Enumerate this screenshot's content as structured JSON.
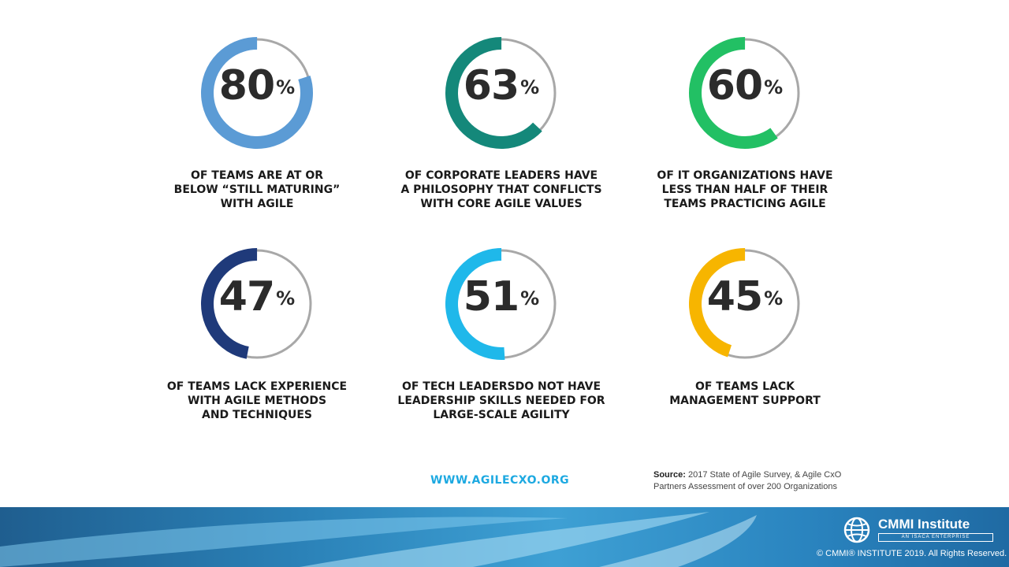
{
  "chart_data": {
    "type": "donut",
    "values": [
      80,
      63,
      60,
      47,
      51,
      45
    ],
    "unit": "%",
    "items": [
      {
        "value": 80,
        "color": "#5b9bd5",
        "caption": [
          "OF TEAMS ARE AT OR",
          "BELOW “STILL MATURING”",
          "WITH AGILE"
        ]
      },
      {
        "value": 63,
        "color": "#14887a",
        "caption": [
          "OF CORPORATE LEADERS HAVE",
          "A PHILOSOPHY THAT CONFLICTS",
          "WITH CORE AGILE VALUES"
        ]
      },
      {
        "value": 60,
        "color": "#22c064",
        "caption": [
          "OF IT ORGANIZATIONS HAVE",
          "LESS THAN HALF OF THEIR",
          "TEAMS PRACTICING AGILE"
        ]
      },
      {
        "value": 47,
        "color": "#1f3a7a",
        "caption": [
          "OF TEAMS LACK EXPERIENCE",
          "WITH AGILE METHODS",
          "AND TECHNIQUES"
        ]
      },
      {
        "value": 51,
        "color": "#1fb8ea",
        "caption": [
          "OF TECH LEADERSDO NOT HAVE",
          "LEADERSHIP SKILLS NEEDED FOR",
          "LARGE-SCALE AGILITY"
        ]
      },
      {
        "value": 45,
        "color": "#f7b500",
        "caption": [
          "OF TEAMS LACK",
          "MANAGEMENT SUPPORT"
        ]
      }
    ]
  },
  "url": "WWW.AGILECXO.ORG",
  "source": {
    "label": "Source:",
    "line1": "2017 State of Agile Survey, & Agile CxO",
    "line2": "Partners Assessment of over 200 Organizations"
  },
  "logo": {
    "name": "CMMI Institute",
    "tagline": "AN ISACA ENTERPRISE"
  },
  "copyright": "© CMMI® INSTITUTE 2019. All Rights Reserved.",
  "colors": {
    "track": "#a8a8a8",
    "url": "#1da9e1",
    "footer": "#2b82b8"
  }
}
